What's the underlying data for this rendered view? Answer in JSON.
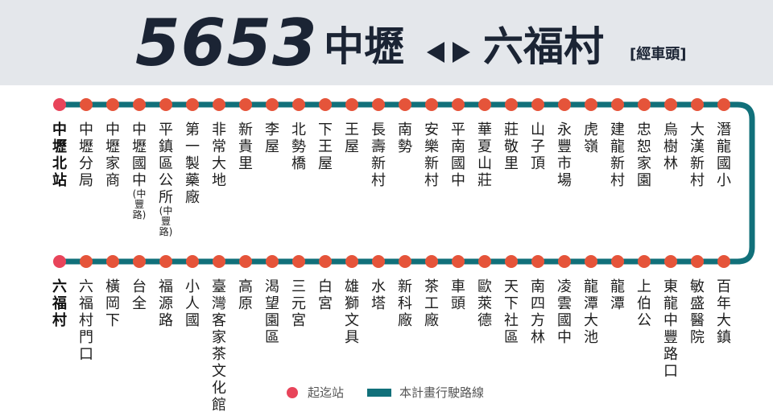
{
  "header": {
    "route_number": "5653",
    "from": "中壢",
    "to": "六福村",
    "note": "[經車頭]"
  },
  "colors": {
    "header_bg": "#e4e7eb",
    "route_line": "#11707a",
    "stop": "#e5543a",
    "terminal": "#e8445a",
    "title_text": "#1b2434"
  },
  "top_row": [
    {
      "name": "中壢北站",
      "terminal": true
    },
    {
      "name": "中壢分局"
    },
    {
      "name": "中壢家商"
    },
    {
      "name": "中壢國中",
      "sub": "(中豐路)"
    },
    {
      "name": "平鎮區公所",
      "sub": "(中豐路)"
    },
    {
      "name": "第一製藥廠"
    },
    {
      "name": "非常大地"
    },
    {
      "name": "新貴里"
    },
    {
      "name": "李屋"
    },
    {
      "name": "北勢橋"
    },
    {
      "name": "下王屋"
    },
    {
      "name": "王屋"
    },
    {
      "name": "長壽新村"
    },
    {
      "name": "南勢"
    },
    {
      "name": "安樂新村"
    },
    {
      "name": "平南國中"
    },
    {
      "name": "華夏山莊"
    },
    {
      "name": "莊敬里"
    },
    {
      "name": "山子頂"
    },
    {
      "name": "永豐市場"
    },
    {
      "name": "虎嶺"
    },
    {
      "name": "建龍新村"
    },
    {
      "name": "忠恕家園"
    },
    {
      "name": "烏樹林"
    },
    {
      "name": "大漢新村"
    },
    {
      "name": "潛龍國小"
    }
  ],
  "bottom_row": [
    {
      "name": "六福村",
      "terminal": true
    },
    {
      "name": "六福村門口"
    },
    {
      "name": "橫岡下"
    },
    {
      "name": "台全"
    },
    {
      "name": "福源路"
    },
    {
      "name": "小人國"
    },
    {
      "name": "臺灣客家茶文化館"
    },
    {
      "name": "高原"
    },
    {
      "name": "渴望園區"
    },
    {
      "name": "三元宮"
    },
    {
      "name": "白宮"
    },
    {
      "name": "雄獅文具"
    },
    {
      "name": "水塔"
    },
    {
      "name": "新科廠"
    },
    {
      "name": "茶工廠"
    },
    {
      "name": "車頭"
    },
    {
      "name": "歐萊德"
    },
    {
      "name": "天下社區"
    },
    {
      "name": "南四方林"
    },
    {
      "name": "凌雲國中"
    },
    {
      "name": "龍潭大池"
    },
    {
      "name": "龍潭"
    },
    {
      "name": "上伯公"
    },
    {
      "name": "東龍中豐路口"
    },
    {
      "name": "敏盛醫院"
    },
    {
      "name": "百年大鎮"
    }
  ],
  "legend": {
    "terminal_label": "起迄站",
    "route_label": "本計畫行駛路線"
  }
}
